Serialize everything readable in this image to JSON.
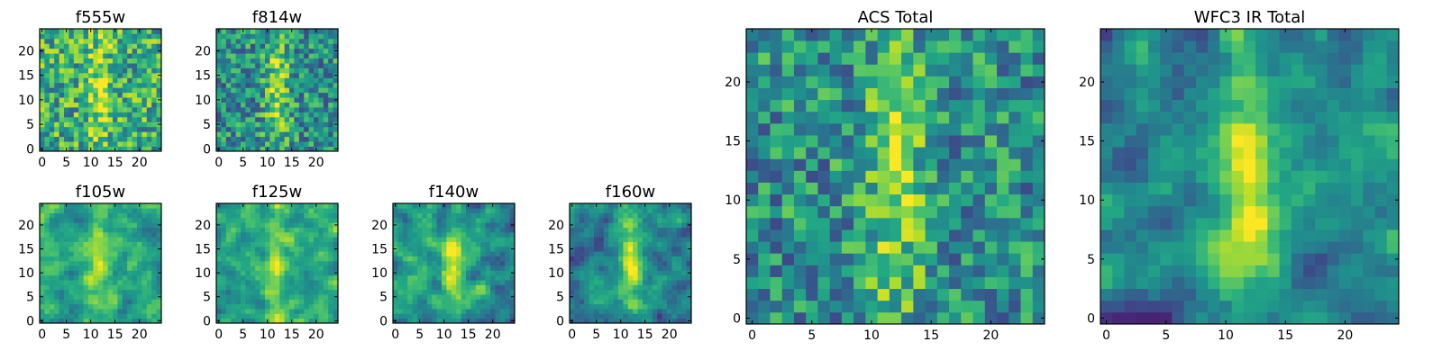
{
  "chart_data": [
    {
      "type": "heatmap",
      "title": "f555w",
      "pattern": "noisy",
      "seed": 11,
      "xticks": [
        "0",
        "5",
        "10",
        "15",
        "20"
      ],
      "yticks": [
        "0",
        "5",
        "10",
        "15",
        "20"
      ],
      "xlim": [
        -0.5,
        24.5
      ],
      "ylim": [
        -0.5,
        24.5
      ],
      "grid_size": 25,
      "colormap": "viridis"
    },
    {
      "type": "heatmap",
      "title": "f814w",
      "pattern": "noisy-mid",
      "seed": 23,
      "xticks": [
        "0",
        "5",
        "10",
        "15",
        "20"
      ],
      "yticks": [
        "0",
        "5",
        "10",
        "15",
        "20"
      ],
      "xlim": [
        -0.5,
        24.5
      ],
      "ylim": [
        -0.5,
        24.5
      ],
      "grid_size": 25,
      "colormap": "viridis"
    },
    {
      "type": "heatmap",
      "title": "f105w",
      "pattern": "smooth",
      "seed": 37,
      "xticks": [
        "0",
        "5",
        "10",
        "15",
        "20"
      ],
      "yticks": [
        "0",
        "5",
        "10",
        "15",
        "20"
      ],
      "xlim": [
        -0.5,
        24.5
      ],
      "ylim": [
        -0.5,
        24.5
      ],
      "grid_size": 25,
      "colormap": "viridis"
    },
    {
      "type": "heatmap",
      "title": "f125w",
      "pattern": "smooth",
      "seed": 41,
      "xticks": [
        "0",
        "5",
        "10",
        "15",
        "20"
      ],
      "yticks": [
        "0",
        "5",
        "10",
        "15",
        "20"
      ],
      "xlim": [
        -0.5,
        24.5
      ],
      "ylim": [
        -0.5,
        24.5
      ],
      "grid_size": 25,
      "colormap": "viridis"
    },
    {
      "type": "heatmap",
      "title": "f140w",
      "pattern": "smooth-mid",
      "seed": 53,
      "xticks": [
        "0",
        "5",
        "10",
        "15",
        "20"
      ],
      "yticks": [
        "0",
        "5",
        "10",
        "15",
        "20"
      ],
      "xlim": [
        -0.5,
        24.5
      ],
      "ylim": [
        -0.5,
        24.5
      ],
      "grid_size": 25,
      "colormap": "viridis"
    },
    {
      "type": "heatmap",
      "title": "f160w",
      "pattern": "smooth-dark",
      "seed": 67,
      "xticks": [
        "0",
        "5",
        "10",
        "15",
        "20"
      ],
      "yticks": [
        "0",
        "5",
        "10",
        "15",
        "20"
      ],
      "xlim": [
        -0.5,
        24.5
      ],
      "ylim": [
        -0.5,
        24.5
      ],
      "grid_size": 25,
      "colormap": "viridis"
    },
    {
      "type": "heatmap",
      "title": "ACS Total",
      "pattern": "noisy-mid",
      "seed": 79,
      "xticks": [
        "0",
        "5",
        "10",
        "15",
        "20"
      ],
      "yticks": [
        "0",
        "5",
        "10",
        "15",
        "20"
      ],
      "xlim": [
        -0.5,
        24.5
      ],
      "ylim": [
        -0.5,
        24.5
      ],
      "grid_size": 25,
      "colormap": "viridis"
    },
    {
      "type": "heatmap",
      "title": "WFC3 IR Total",
      "pattern": "smooth-dark",
      "seed": 97,
      "xticks": [
        "0",
        "5",
        "10",
        "15",
        "20"
      ],
      "yticks": [
        "0",
        "5",
        "10",
        "15",
        "20"
      ],
      "xlim": [
        -0.5,
        24.5
      ],
      "ylim": [
        -0.5,
        24.5
      ],
      "grid_size": 25,
      "colormap": "viridis"
    }
  ]
}
